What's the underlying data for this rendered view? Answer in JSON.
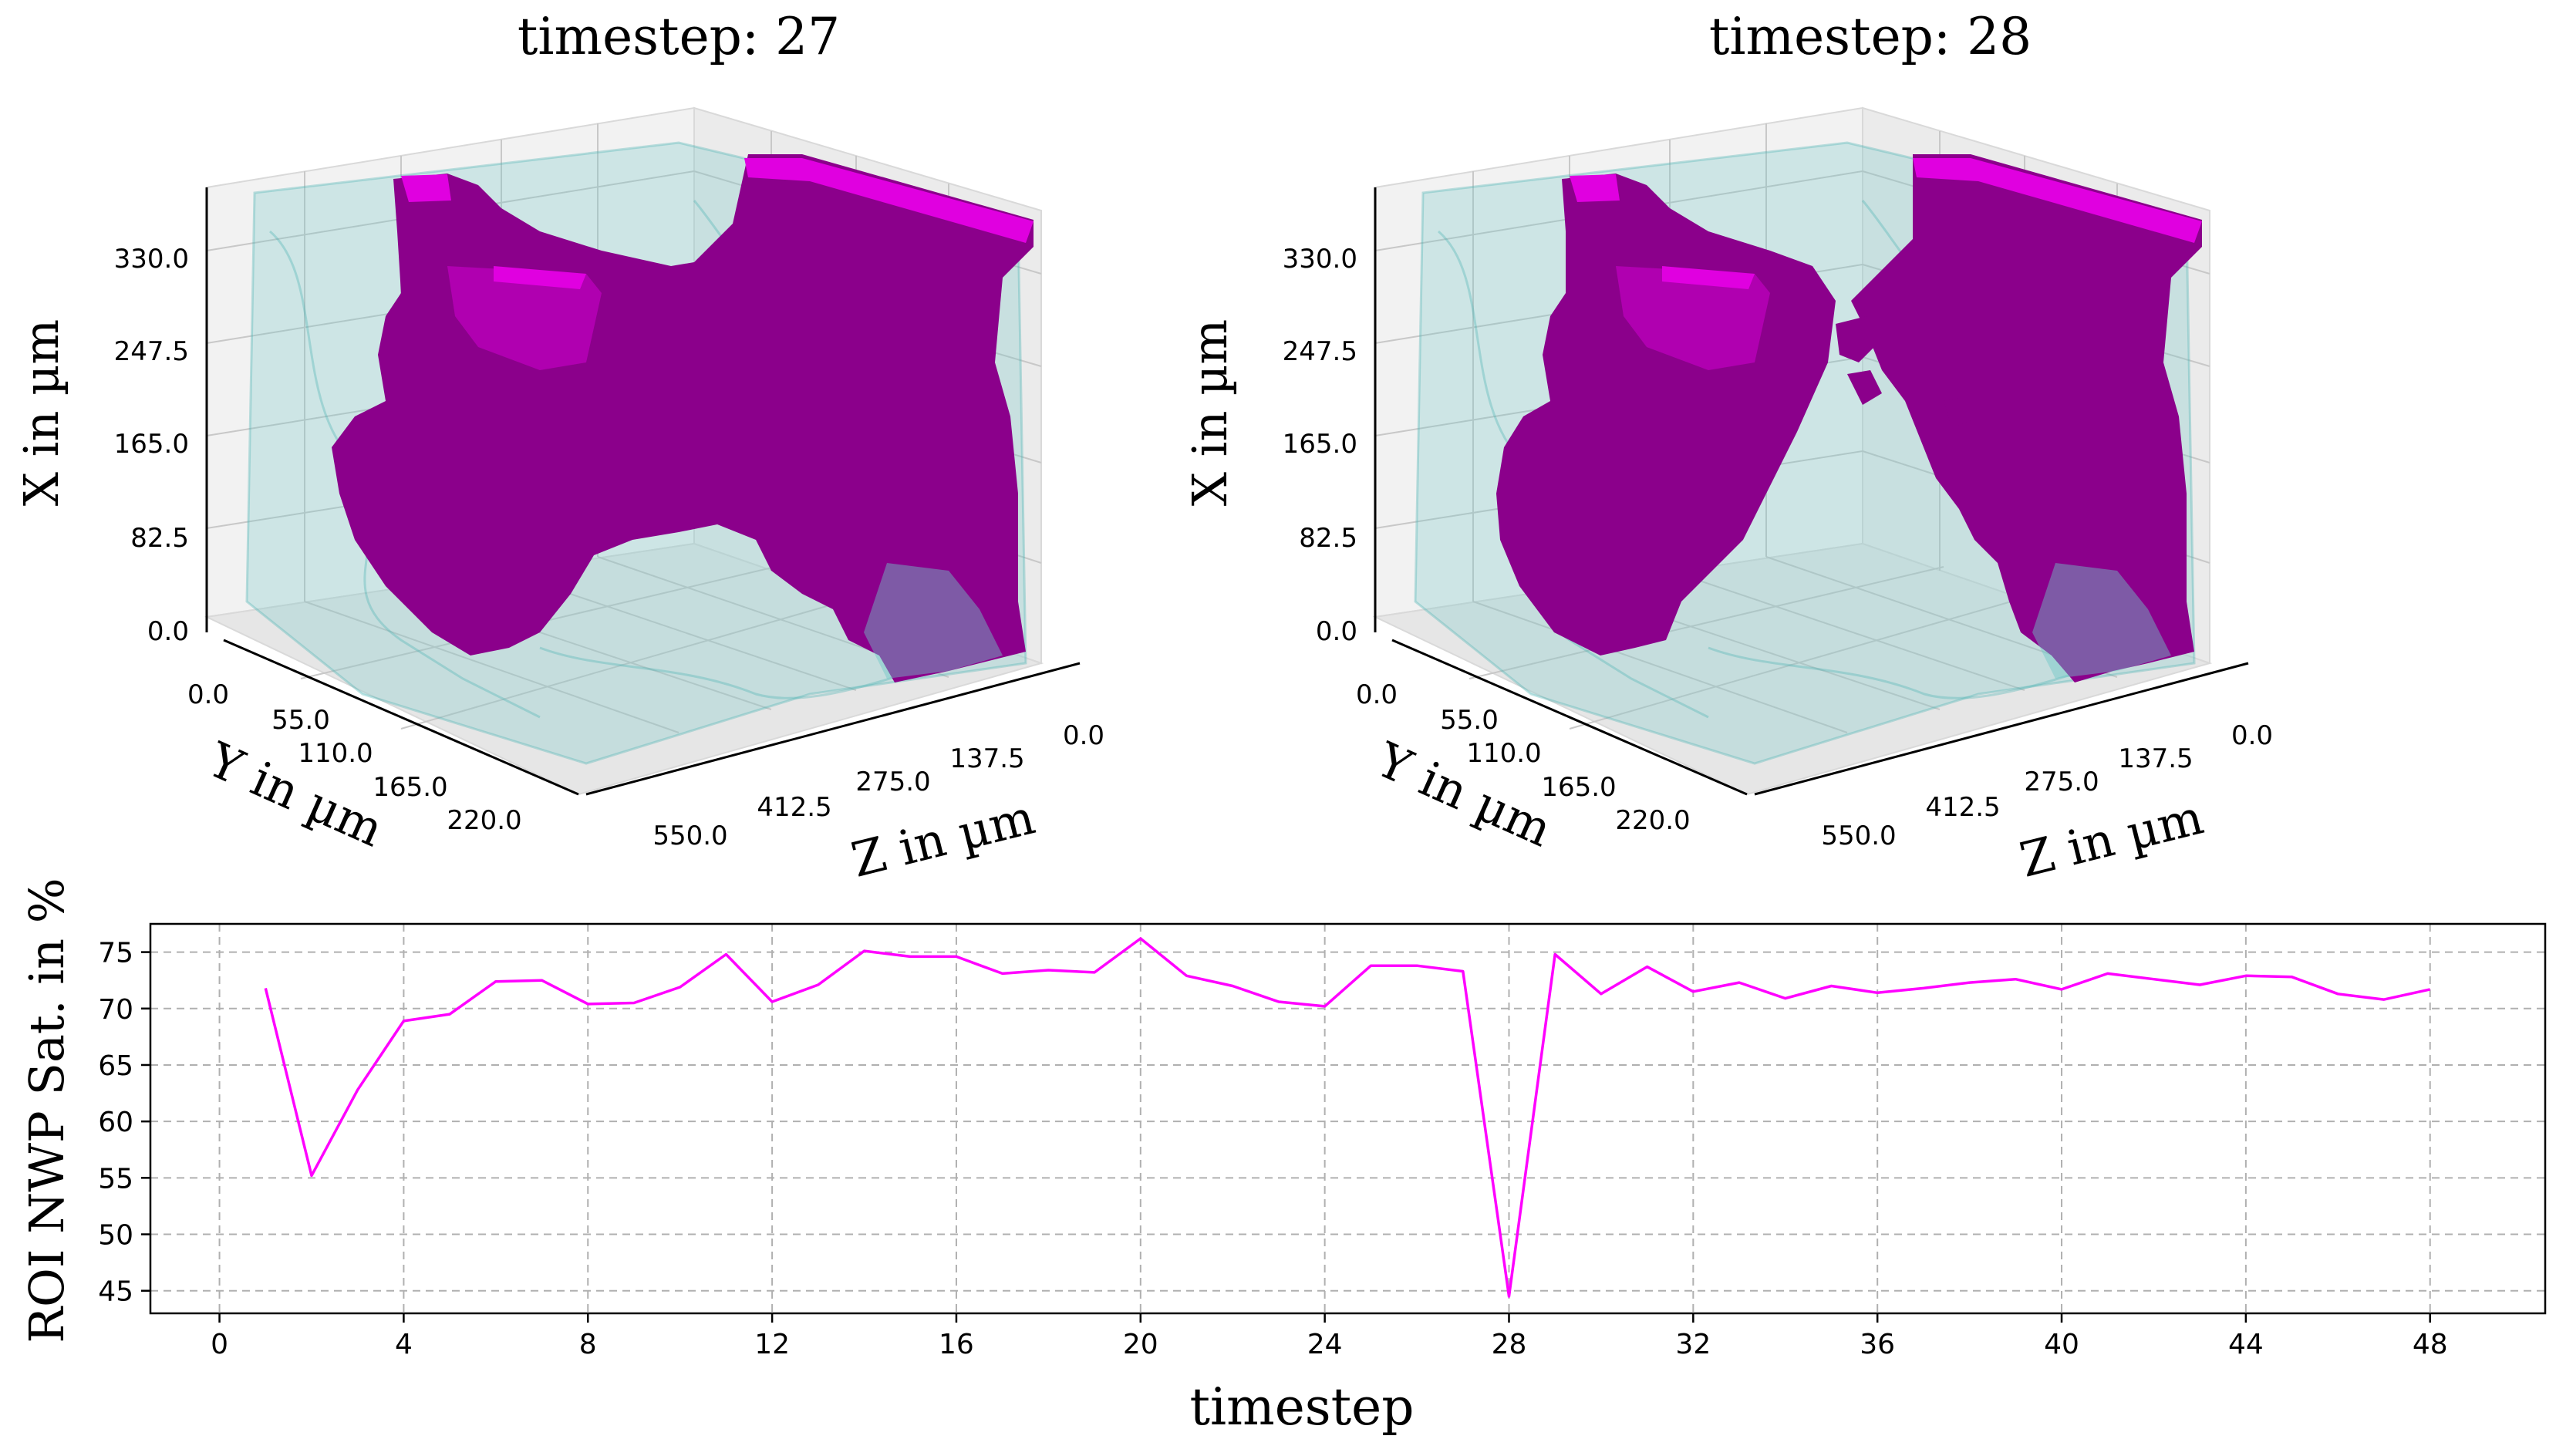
{
  "panels": [
    {
      "title": "timestep: 27",
      "x_axis": {
        "label": "X in µm",
        "ticks": [
          "0.0",
          "82.5",
          "165.0",
          "247.5",
          "330.0"
        ]
      },
      "y_axis": {
        "label": "Y in µm",
        "ticks": [
          "0.0",
          "55.0",
          "110.0",
          "165.0",
          "220.0"
        ]
      },
      "z_axis": {
        "label": "Z in µm",
        "ticks": [
          "0.0",
          "137.5",
          "275.0",
          "412.5",
          "550.0"
        ]
      }
    },
    {
      "title": "timestep: 28",
      "x_axis": {
        "label": "X in µm",
        "ticks": [
          "0.0",
          "82.5",
          "165.0",
          "247.5",
          "330.0"
        ]
      },
      "y_axis": {
        "label": "Y in µm",
        "ticks": [
          "0.0",
          "55.0",
          "110.0",
          "165.0",
          "220.0"
        ]
      },
      "z_axis": {
        "label": "Z in µm",
        "ticks": [
          "0.0",
          "137.5",
          "275.0",
          "412.5",
          "550.0"
        ]
      }
    }
  ],
  "colors": {
    "nwp_volume": "#8b008b",
    "nwp_highlight": "#e000e0",
    "pore_space": "#6fc7c7",
    "line": "#ff00ff",
    "grid": "#b0b0b0"
  },
  "chart_data": {
    "type": "line",
    "title": "",
    "xlabel": "timestep",
    "ylabel": "ROI NWP Sat. in %",
    "xlim": [
      -1.5,
      50.5
    ],
    "ylim": [
      43,
      77.5
    ],
    "xticks": [
      0,
      4,
      8,
      12,
      16,
      20,
      24,
      28,
      32,
      36,
      40,
      44,
      48
    ],
    "yticks": [
      45,
      50,
      55,
      60,
      65,
      70,
      75
    ],
    "grid": true,
    "series": [
      {
        "x": [
          1,
          2,
          3,
          4,
          5,
          6,
          7,
          8,
          9,
          10,
          11,
          12,
          13,
          14,
          15,
          16,
          17,
          18,
          19,
          20,
          21,
          22,
          23,
          24,
          25,
          26,
          27,
          28,
          29,
          30,
          31,
          32,
          33,
          34,
          35,
          36,
          37,
          38,
          39,
          40,
          41,
          42,
          43,
          44,
          45,
          46,
          47,
          48
        ],
        "values": [
          71.8,
          55.2,
          62.8,
          68.9,
          69.5,
          72.4,
          72.5,
          70.4,
          70.5,
          71.9,
          74.8,
          70.6,
          72.1,
          75.1,
          74.6,
          74.6,
          73.1,
          73.4,
          73.2,
          76.2,
          72.9,
          72.0,
          70.6,
          70.2,
          73.8,
          73.8,
          73.3,
          44.5,
          74.8,
          71.3,
          73.7,
          71.5,
          72.3,
          70.9,
          72.0,
          71.4,
          71.8,
          72.3,
          72.6,
          71.7,
          73.1,
          72.6,
          72.1,
          72.9,
          72.8,
          71.3,
          70.8,
          71.7
        ]
      }
    ]
  }
}
